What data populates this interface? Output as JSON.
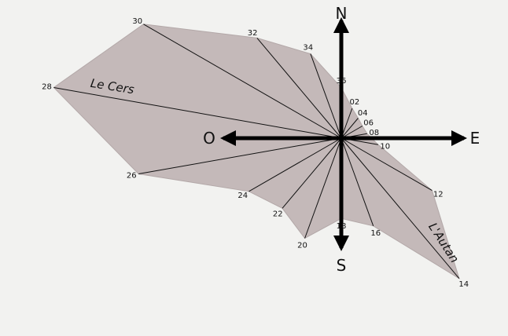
{
  "colors": {
    "background": "#f2f2f0",
    "polygon_fill": "#c4b9b9",
    "polygon_edge": "#b3a8a8",
    "ray": "#111111",
    "axis": "#000000"
  },
  "cardinals": {
    "north": "N",
    "south": "S",
    "east": "E",
    "west": "O"
  },
  "winds": {
    "cers": "Le Cers",
    "autan": "L'Autan"
  },
  "directions": [
    {
      "label": "02",
      "value": 17
    },
    {
      "label": "04",
      "value": 14
    },
    {
      "label": "06",
      "value": 13
    },
    {
      "label": "08",
      "value": 14
    },
    {
      "label": "10",
      "value": 20
    },
    {
      "label": "12",
      "value": 56
    },
    {
      "label": "14",
      "value": 98
    },
    {
      "label": "16",
      "value": 50
    },
    {
      "label": "18",
      "value": 43
    },
    {
      "label": "20",
      "value": 57
    },
    {
      "label": "22",
      "value": 49
    },
    {
      "label": "24",
      "value": 57
    },
    {
      "label": "26",
      "value": 110
    },
    {
      "label": "28",
      "value": 156
    },
    {
      "label": "30",
      "value": 122
    },
    {
      "label": "32",
      "value": 70
    },
    {
      "label": "34",
      "value": 48
    },
    {
      "label": "36",
      "value": 27
    }
  ]
}
